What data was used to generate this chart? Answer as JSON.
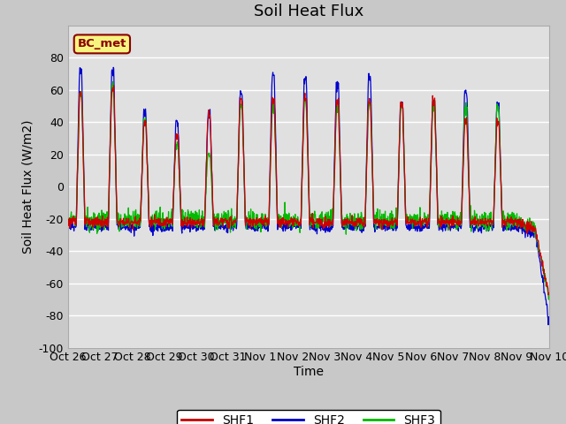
{
  "title": "Soil Heat Flux",
  "xlabel": "Time",
  "ylabel": "Soil Heat Flux (W/m2)",
  "ylim": [
    -100,
    100
  ],
  "yticks": [
    -100,
    -80,
    -60,
    -40,
    -20,
    0,
    20,
    40,
    60,
    80
  ],
  "x_labels": [
    "Oct 26",
    "Oct 27",
    "Oct 28",
    "Oct 29",
    "Oct 30",
    "Oct 31",
    "Nov 1",
    "Nov 2",
    "Nov 3",
    "Nov 4",
    "Nov 5",
    "Nov 6",
    "Nov 7",
    "Nov 8",
    "Nov 9",
    "Nov 10"
  ],
  "annotation_text": "BC_met",
  "colors": {
    "SHF1": "#cc0000",
    "SHF2": "#0000cc",
    "SHF3": "#00bb00"
  },
  "legend_labels": [
    "SHF1",
    "SHF2",
    "SHF3"
  ],
  "fig_bg_color": "#c8c8c8",
  "plot_bg_color": "#e0e0e0",
  "title_fontsize": 13,
  "label_fontsize": 10,
  "tick_fontsize": 9
}
